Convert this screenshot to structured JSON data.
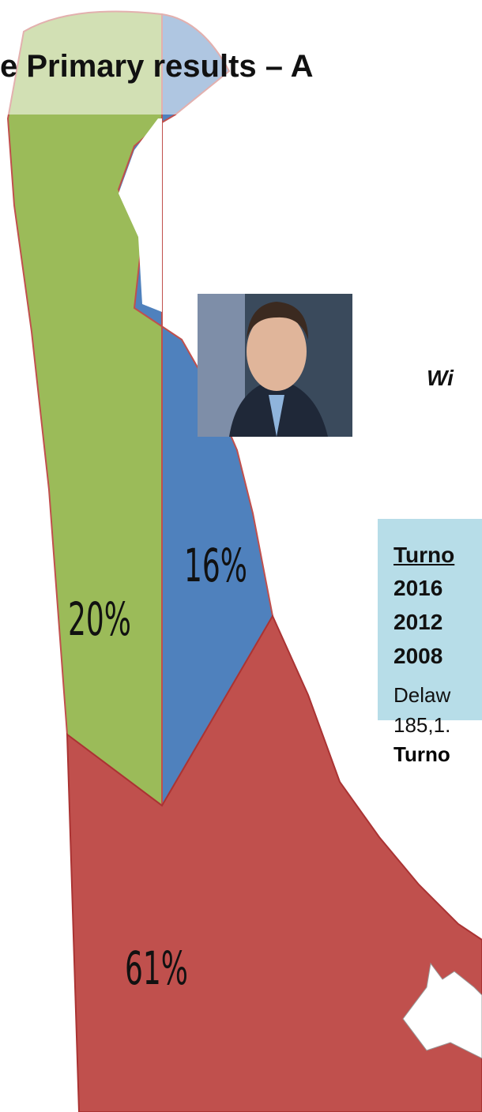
{
  "header": {
    "title": "e Primary results – A"
  },
  "map": {
    "labels": [
      "20%",
      "16%",
      "61%"
    ]
  },
  "winner": "Wi",
  "turnout_box": {
    "heading": "Turno",
    "years": [
      "2016",
      "2012",
      "2008"
    ],
    "text_lines": [
      "Delaw",
      "185,1."
    ],
    "footer": "Turno"
  }
}
